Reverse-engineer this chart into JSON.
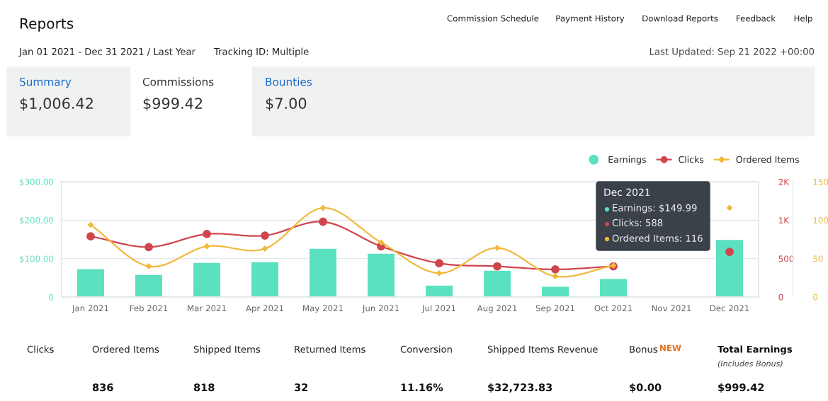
{
  "chart_data": {
    "type": "bar",
    "categories": [
      "Jan 2021",
      "Feb 2021",
      "Mar 2021",
      "Apr 2021",
      "May 2021",
      "Jun 2021",
      "Jul 2021",
      "Aug 2021",
      "Sep 2021",
      "Oct 2021",
      "Nov 2021",
      "Dec 2021"
    ],
    "series": [
      {
        "name": "Earnings",
        "color": "#5ce1c0",
        "values": [
          74,
          59,
          90,
          92,
          127,
          114,
          31,
          70,
          28,
          48,
          null,
          150
        ]
      },
      {
        "name": "Clicks",
        "type": "line",
        "axis": "y2",
        "marker": "circle",
        "color": "#d0454c",
        "values": [
          790,
          650,
          820,
          800,
          980,
          660,
          440,
          400,
          360,
          400,
          null,
          588
        ]
      },
      {
        "name": "Ordered Items",
        "type": "line",
        "axis": "y3",
        "marker": "diamond",
        "color": "#f0b93b",
        "values": [
          94,
          40,
          66,
          63,
          116,
          71,
          31,
          64,
          27,
          41,
          null,
          116
        ]
      }
    ],
    "ylim": [
      0,
      300
    ],
    "yticks": [
      0,
      {
        "value": 100,
        "label": "$100.00"
      },
      {
        "value": 200,
        "label": "$200.00"
      },
      {
        "value": 300,
        "label": "$300.00"
      }
    ],
    "y2lim": [
      0,
      1500
    ],
    "y2ticks": [
      0,
      500,
      {
        "value": 1000,
        "label": "1K"
      },
      {
        "value": 1500,
        "label": "2K"
      }
    ],
    "y3lim": [
      0,
      150
    ],
    "y3ticks": [
      0,
      50,
      100,
      150
    ],
    "grid": "y",
    "legend": "top right",
    "annotations": [
      "Reports",
      "Commission Schedule",
      "Payment History",
      "Download Reports",
      "Feedback",
      "Help",
      "Jan 01 2021 - Dec 31 2021 / Last Year",
      "Tracking ID: Multiple",
      "Last Updated: Sep 21 2022 +00:00",
      "Summary",
      "$1,006.42",
      "Commissions",
      "$999.42",
      "Bounties",
      "$7.00",
      "Clicks",
      "Ordered Items",
      "Shipped Items",
      "Returned Items",
      "Conversion",
      "Shipped Items Revenue",
      "Bonus",
      "NEW",
      "Total Earnings",
      "(Includes Bonus)",
      "836",
      "818",
      "32",
      "11.16%",
      "$32,723.83",
      "$0.00",
      "$999.42",
      "Dec 2021",
      "Earnings: $149.99",
      "Clicks: 588",
      "Ordered Items: 116"
    ]
  }
}
